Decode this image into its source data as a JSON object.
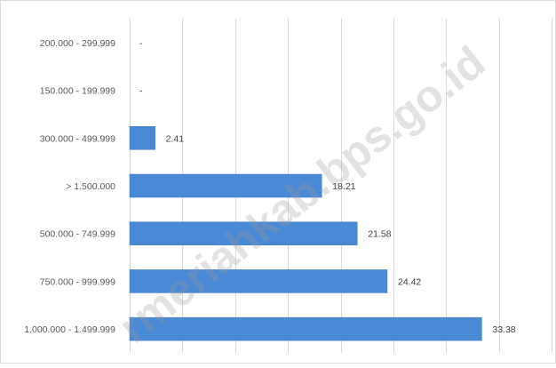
{
  "chart_data": {
    "type": "bar",
    "orientation": "horizontal",
    "categories": [
      "200.000 - 299.999",
      "150.000 - 199.999",
      "300.000 - 499.999",
      "> 1.500.000",
      "500.000 - 749.999",
      "750.000 - 999.999",
      "1.000.000 - 1.499.999"
    ],
    "values": [
      0,
      0,
      2.41,
      18.21,
      21.58,
      24.42,
      33.38
    ],
    "labels": [
      "-",
      "-",
      "2.41",
      "18.21",
      "21.58",
      "24.42",
      "33.38"
    ],
    "xlim": [
      0,
      40
    ],
    "grid": "vertical",
    "legend": "none",
    "bar_color": "#4a89d6",
    "gridline_color": "#d9d9d9"
  },
  "watermark": "rmeriahkab.bps.go.id"
}
